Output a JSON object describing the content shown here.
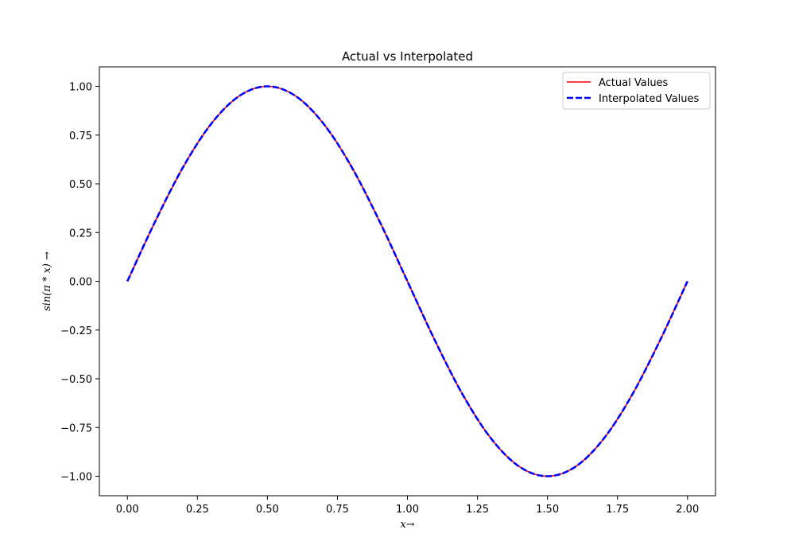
{
  "chart_data": {
    "type": "line",
    "title": "Actual vs Interpolated",
    "xlabel": "x→",
    "ylabel": "sin(π * x) →",
    "xlim": [
      -0.1,
      2.1
    ],
    "ylim": [
      -1.1,
      1.1
    ],
    "x_ticks": [
      0.0,
      0.25,
      0.5,
      0.75,
      1.0,
      1.25,
      1.5,
      1.75,
      2.0
    ],
    "x_tick_labels": [
      "0.00",
      "0.25",
      "0.50",
      "0.75",
      "1.00",
      "1.25",
      "1.50",
      "1.75",
      "2.00"
    ],
    "y_ticks": [
      -1.0,
      -0.75,
      -0.5,
      -0.25,
      0.0,
      0.25,
      0.5,
      0.75,
      1.0
    ],
    "y_tick_labels": [
      "−1.00",
      "−0.75",
      "−0.50",
      "−0.25",
      "0.00",
      "0.25",
      "0.50",
      "0.75",
      "1.00"
    ],
    "grid": false,
    "legend_position": "top-right",
    "x": [
      0.0,
      0.1,
      0.2,
      0.3,
      0.4,
      0.5,
      0.6,
      0.7,
      0.8,
      0.9,
      1.0,
      1.1,
      1.2,
      1.3,
      1.4,
      1.5,
      1.6,
      1.7,
      1.8,
      1.9,
      2.0
    ],
    "series": [
      {
        "name": "Actual Values",
        "color": "#ff0000",
        "style": "solid",
        "values": [
          0.0,
          0.309,
          0.588,
          0.809,
          0.951,
          1.0,
          0.951,
          0.809,
          0.588,
          0.309,
          0.0,
          -0.309,
          -0.588,
          -0.809,
          -0.951,
          -1.0,
          -0.951,
          -0.809,
          -0.588,
          -0.309,
          0.0
        ]
      },
      {
        "name": "Interpolated Values",
        "color": "#0000ff",
        "style": "dashed",
        "values": [
          0.0,
          0.309,
          0.588,
          0.809,
          0.951,
          1.0,
          0.951,
          0.809,
          0.588,
          0.309,
          0.0,
          -0.309,
          -0.588,
          -0.809,
          -0.951,
          -1.0,
          -0.951,
          -0.809,
          -0.588,
          -0.309,
          0.0
        ]
      }
    ]
  }
}
